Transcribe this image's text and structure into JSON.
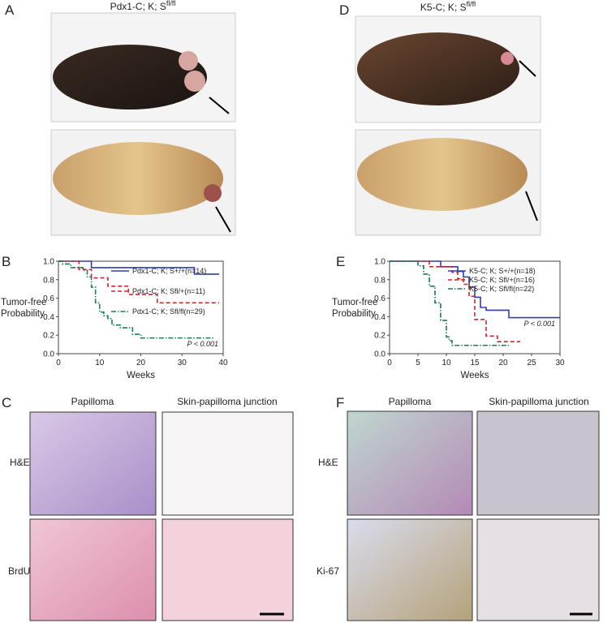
{
  "panels": {
    "A": {
      "letter": "A",
      "title": {
        "text": "Pdx1-C; K; S",
        "sup": "fl/fl"
      }
    },
    "B": {
      "letter": "B"
    },
    "C": {
      "letter": "C",
      "columns": [
        "Papilloma",
        "Skin-papilloma junction"
      ],
      "rows": [
        "H&E",
        "BrdU"
      ]
    },
    "D": {
      "letter": "D",
      "title": {
        "text": "K5-C; K; S",
        "sup": "fl/fl"
      }
    },
    "E": {
      "letter": "E"
    },
    "F": {
      "letter": "F",
      "columns": [
        "Papilloma",
        "Skin-papilloma junction"
      ],
      "rows": [
        "H&E",
        "Ki-67"
      ]
    }
  },
  "chart_data": [
    {
      "type": "step",
      "xlabel": "Weeks",
      "ylabel": [
        "Tumor-free",
        "Probability"
      ],
      "annotation": "P < 0.001",
      "xlim": [
        0,
        40
      ],
      "xticks": [
        0,
        10,
        20,
        30,
        40
      ],
      "ylim": [
        0,
        1
      ],
      "yticks": [
        {
          "value": 0,
          "label": "0.0"
        },
        0.2,
        0.4,
        0.6,
        0.8,
        {
          "value": 1,
          "label": "1.0"
        }
      ],
      "legend": "upper right",
      "series": [
        {
          "name": "Pdx1-C; K; S+/+(n=14)",
          "color": "#2f3db0",
          "linestyle": "solid",
          "x": [
            0,
            8,
            33,
            39
          ],
          "values": [
            1.0,
            0.93,
            0.86,
            0.86
          ]
        },
        {
          "name": "Pdx1-C; K; Sfl/+(n=11)",
          "color": "#c8282d",
          "linestyle": "dashed",
          "x": [
            0,
            5,
            8,
            12,
            17,
            24,
            39
          ],
          "values": [
            1.0,
            0.91,
            0.82,
            0.73,
            0.64,
            0.55,
            0.55
          ]
        },
        {
          "name": "Pdx1-C; K; Sfl/fl(n=29)",
          "color": "#1a7a5a",
          "linestyle": "dashdot",
          "x": [
            0,
            1,
            3,
            6,
            7,
            8,
            9,
            10,
            11,
            12,
            13,
            15,
            18,
            20,
            38
          ],
          "values": [
            1.0,
            0.97,
            0.93,
            0.9,
            0.83,
            0.72,
            0.55,
            0.45,
            0.41,
            0.38,
            0.31,
            0.28,
            0.21,
            0.17,
            0.17
          ]
        }
      ]
    },
    {
      "type": "step",
      "xlabel": "Weeks",
      "ylabel": [
        "Tumor-free",
        "Probability"
      ],
      "annotation": "P < 0.001",
      "xlim": [
        0,
        30
      ],
      "xticks": [
        0,
        5,
        10,
        15,
        20,
        25,
        30
      ],
      "ylim": [
        0,
        1
      ],
      "yticks": [
        {
          "value": 0,
          "label": "0.0"
        },
        0.2,
        0.4,
        0.6,
        0.8,
        {
          "value": 1,
          "label": "1.0"
        }
      ],
      "legend": "upper right",
      "series": [
        {
          "name": "K5-C; K; S+/+(n=18)",
          "color": "#2f3db0",
          "linestyle": "solid",
          "x": [
            0,
            9,
            12,
            13,
            14,
            15,
            16,
            17,
            21,
            30
          ],
          "values": [
            1.0,
            0.94,
            0.89,
            0.83,
            0.72,
            0.61,
            0.5,
            0.47,
            0.39,
            0.39
          ]
        },
        {
          "name": "K5-C; K; Sfl/+(n=16)",
          "color": "#c8282d",
          "linestyle": "dashed",
          "x": [
            0,
            7,
            11,
            12,
            13,
            14,
            15,
            17,
            19,
            23
          ],
          "values": [
            1.0,
            0.94,
            0.88,
            0.81,
            0.75,
            0.62,
            0.37,
            0.19,
            0.13,
            0.13
          ]
        },
        {
          "name": "K5-C; K; Sfl/fl(n=22)",
          "color": "#1a7a5a",
          "linestyle": "dashdot",
          "x": [
            0,
            5,
            6,
            7,
            8,
            9,
            10,
            10.5,
            11,
            21
          ],
          "values": [
            1.0,
            0.95,
            0.86,
            0.73,
            0.55,
            0.36,
            0.18,
            0.14,
            0.09,
            0.09
          ]
        }
      ]
    }
  ]
}
